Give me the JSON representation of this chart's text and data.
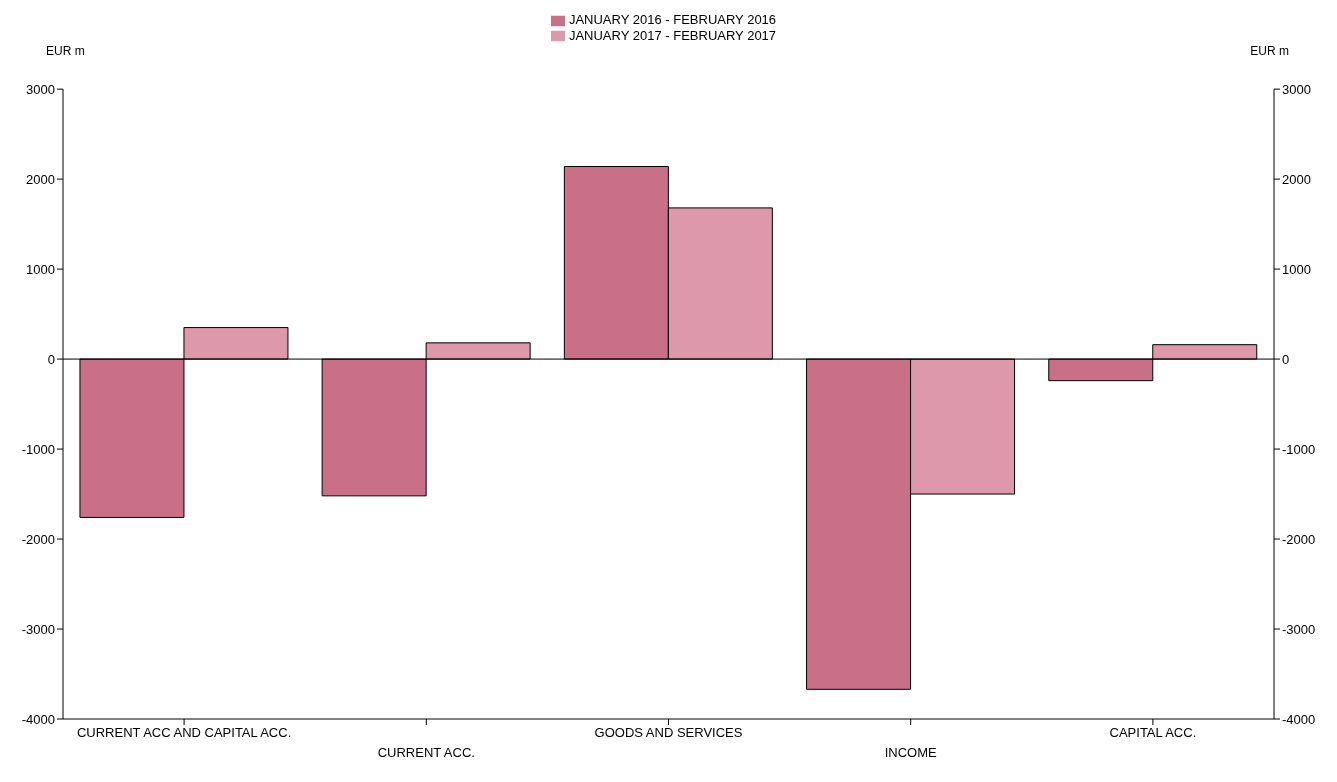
{
  "chart_data": {
    "type": "bar",
    "ylabel": "EUR m",
    "y2label": "EUR m",
    "categories": [
      "CURRENT ACC AND CAPITAL ACC.",
      "CURRENT ACC.",
      "GOODS AND SERVICES",
      "INCOME",
      "CAPITAL ACC."
    ],
    "series": [
      {
        "name": "JANUARY 2016 - FEBRUARY 2016",
        "color": "#c97088",
        "values": [
          -1760,
          -1520,
          2140,
          -3670,
          -240
        ]
      },
      {
        "name": "JANUARY 2017 - FEBRUARY 2017",
        "color": "#dd98ac",
        "values": [
          350,
          180,
          1680,
          -1500,
          160
        ]
      }
    ],
    "ylim": [
      -4000,
      3000
    ],
    "yticks": [
      -4000,
      -3000,
      -2000,
      -1000,
      0,
      1000,
      2000,
      3000
    ],
    "y2lim": [
      -4000,
      3000
    ],
    "y2ticks": [
      -4000,
      -3000,
      -2000,
      -1000,
      0,
      1000,
      2000,
      3000
    ],
    "ref_lines": [
      {
        "axis": "y",
        "value": 0,
        "color": "#000000"
      }
    ],
    "legend": "top"
  }
}
